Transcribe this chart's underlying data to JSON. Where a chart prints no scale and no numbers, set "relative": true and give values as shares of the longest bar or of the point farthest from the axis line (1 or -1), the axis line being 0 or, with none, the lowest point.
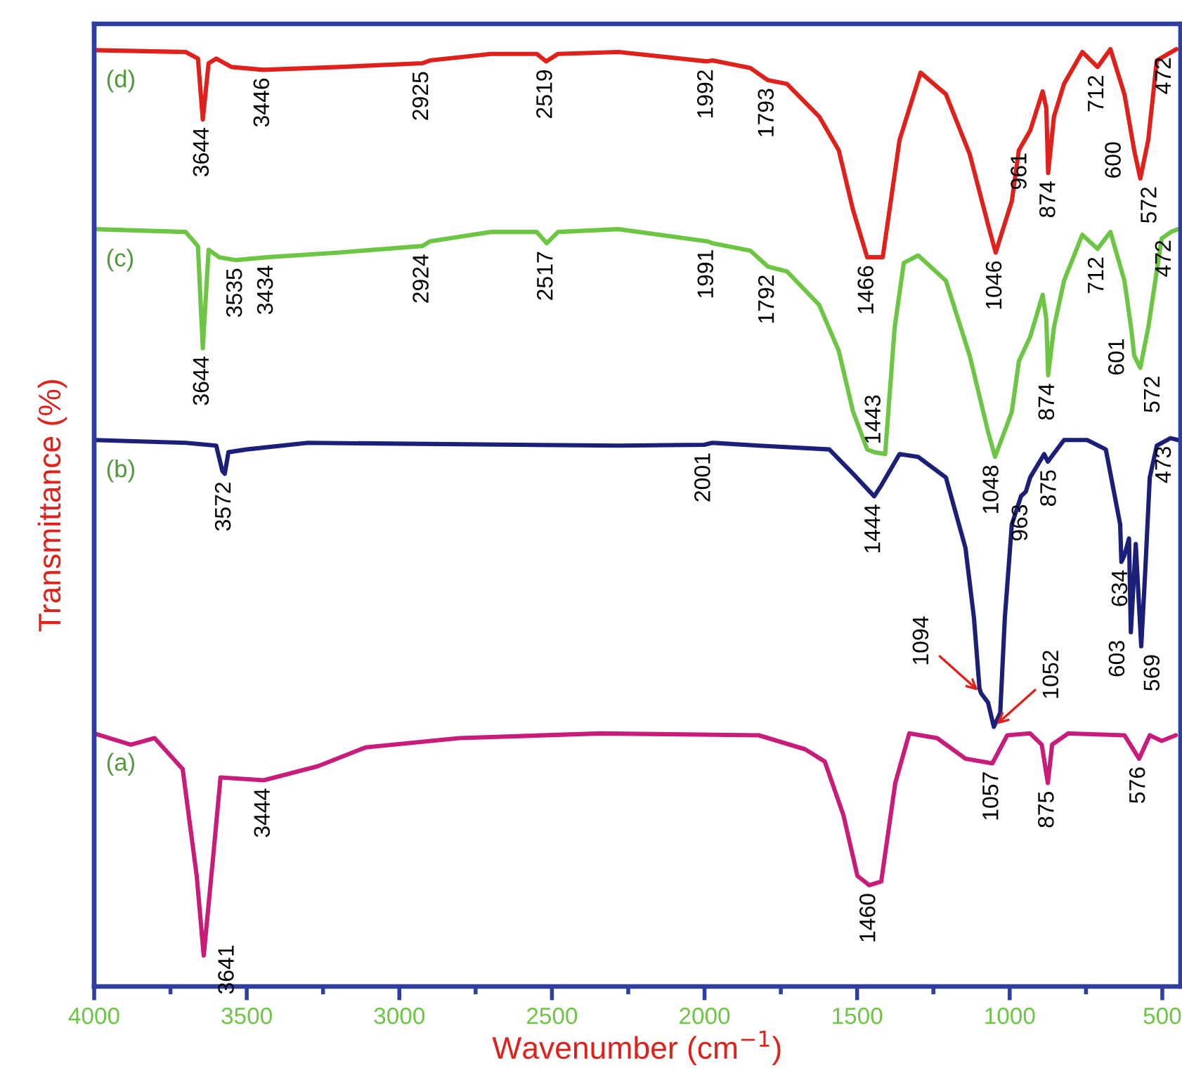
{
  "chart_data": {
    "type": "line",
    "relative": true,
    "xlabel": "Wavenumber (cm$^{−1}$)",
    "ylabel": "Transmittance (%)",
    "xlim": [
      4000,
      440
    ],
    "xticks": [
      4000,
      3500,
      3000,
      2500,
      2000,
      1500,
      1000,
      500
    ],
    "series": [
      {
        "name": "(d)",
        "color": "#e0201b",
        "x": [
          4000,
          3700,
          3660,
          3644,
          3625,
          3600,
          3550,
          3446,
          3200,
          2925,
          2900,
          2700,
          2550,
          2519,
          2480,
          2282,
          1992,
          1974,
          1850,
          1793,
          1730,
          1624,
          1560,
          1513,
          1467,
          1416,
          1361,
          1292,
          1209,
          1131,
          1071,
          1046,
          993,
          970,
          933,
          892,
          880,
          874,
          855,
          822,
          762,
          712,
          670,
          624,
          592,
          572,
          546,
          518,
          454
        ],
        "values": [
          0.999,
          0.997,
          0.99,
          0.925,
          0.985,
          0.99,
          0.981,
          0.978,
          0.981,
          0.985,
          0.988,
          0.995,
          0.995,
          0.987,
          0.995,
          0.997,
          0.987,
          0.988,
          0.98,
          0.967,
          0.963,
          0.928,
          0.892,
          0.828,
          0.778,
          0.778,
          0.903,
          0.975,
          0.952,
          0.888,
          0.813,
          0.783,
          0.838,
          0.892,
          0.913,
          0.955,
          0.937,
          0.868,
          0.928,
          0.963,
          0.997,
          0.981,
          1.0,
          0.952,
          0.892,
          0.862,
          0.903,
          0.988,
          1.0
        ]
      },
      {
        "name": "(c)",
        "color": "#6cc644",
        "x": [
          4000,
          3700,
          3660,
          3644,
          3625,
          3590,
          3535,
          3434,
          3200,
          2924,
          2900,
          2700,
          2550,
          2517,
          2480,
          2282,
          1991,
          1974,
          1850,
          1792,
          1730,
          1624,
          1560,
          1513,
          1467,
          1443,
          1408,
          1377,
          1347,
          1300,
          1209,
          1131,
          1071,
          1048,
          993,
          970,
          933,
          892,
          880,
          874,
          855,
          822,
          762,
          712,
          670,
          624,
          601,
          592,
          572,
          546,
          502,
          472,
          448
        ],
        "values": [
          0.808,
          0.805,
          0.79,
          0.681,
          0.786,
          0.778,
          0.775,
          0.778,
          0.783,
          0.79,
          0.795,
          0.805,
          0.805,
          0.793,
          0.805,
          0.808,
          0.795,
          0.793,
          0.785,
          0.768,
          0.763,
          0.727,
          0.678,
          0.613,
          0.573,
          0.57,
          0.568,
          0.703,
          0.772,
          0.78,
          0.753,
          0.673,
          0.592,
          0.565,
          0.613,
          0.667,
          0.693,
          0.738,
          0.712,
          0.652,
          0.703,
          0.753,
          0.802,
          0.787,
          0.805,
          0.753,
          0.7,
          0.673,
          0.66,
          0.703,
          0.798,
          0.805,
          0.808
        ]
      },
      {
        "name": "(b)",
        "color": "#1b1f7a",
        "x": [
          4000,
          3700,
          3600,
          3580,
          3572,
          3560,
          3500,
          3300,
          2282,
          2001,
          1974,
          1822,
          1591,
          1513,
          1444,
          1420,
          1361,
          1300,
          1209,
          1145,
          1117,
          1099,
          1094,
          1071,
          1052,
          1031,
          1016,
          993,
          963,
          947,
          933,
          887,
          875,
          822,
          746,
          685,
          638,
          634,
          624,
          609,
          603,
          587,
          569,
          556,
          541,
          518,
          473,
          448
        ],
        "values": [
          0.583,
          0.58,
          0.577,
          0.55,
          0.547,
          0.57,
          0.573,
          0.58,
          0.577,
          0.578,
          0.58,
          0.577,
          0.573,
          0.547,
          0.523,
          0.535,
          0.568,
          0.565,
          0.543,
          0.468,
          0.393,
          0.318,
          0.313,
          0.303,
          0.277,
          0.292,
          0.393,
          0.493,
          0.523,
          0.528,
          0.543,
          0.568,
          0.56,
          0.583,
          0.583,
          0.573,
          0.493,
          0.453,
          0.46,
          0.478,
          0.378,
          0.472,
          0.363,
          0.442,
          0.543,
          0.577,
          0.585,
          0.583
        ]
      },
      {
        "name": "(a)",
        "color": "#c81b7a",
        "x": [
          4000,
          3880,
          3802,
          3710,
          3664,
          3641,
          3609,
          3586,
          3444,
          3267,
          3111,
          2803,
          2342,
          1822,
          1670,
          1606,
          1545,
          1499,
          1460,
          1421,
          1375,
          1329,
          1238,
          1145,
          1057,
          1008,
          933,
          895,
          875,
          861,
          808,
          624,
          576,
          541,
          502,
          456
        ],
        "values": [
          0.27,
          0.258,
          0.265,
          0.232,
          0.118,
          0.033,
          0.142,
          0.223,
          0.22,
          0.235,
          0.255,
          0.265,
          0.27,
          0.268,
          0.253,
          0.24,
          0.183,
          0.118,
          0.108,
          0.112,
          0.217,
          0.27,
          0.265,
          0.243,
          0.238,
          0.268,
          0.27,
          0.258,
          0.217,
          0.258,
          0.27,
          0.268,
          0.243,
          0.268,
          0.262,
          0.268
        ]
      }
    ],
    "annotations": [
      {
        "text": "3644",
        "x": 3644,
        "y": 0.925
      },
      {
        "text": "3446",
        "x": 3446,
        "y": 0.978
      },
      {
        "text": "2925",
        "x": 2925,
        "y": 0.985
      },
      {
        "text": "2519",
        "x": 2519,
        "y": 0.987
      },
      {
        "text": "1992",
        "x": 1992,
        "y": 0.987
      },
      {
        "text": "1793",
        "x": 1793,
        "y": 0.967
      },
      {
        "text": "1466",
        "x": 1466,
        "y": 0.778
      },
      {
        "text": "1046",
        "x": 1046,
        "y": 0.783
      },
      {
        "text": "961",
        "x": 961,
        "y": 0.898
      },
      {
        "text": "874",
        "x": 874,
        "y": 0.868
      },
      {
        "text": "712",
        "x": 712,
        "y": 0.981
      },
      {
        "text": "600",
        "x": 600,
        "y": 0.91
      },
      {
        "text": "572",
        "x": 572,
        "y": 0.862
      },
      {
        "text": "472",
        "x": 472,
        "y": 1.0
      },
      {
        "text": "3644",
        "x": 3644,
        "y": 0.681
      },
      {
        "text": "3535",
        "x": 3535,
        "y": 0.775
      },
      {
        "text": "3434",
        "x": 3434,
        "y": 0.778
      },
      {
        "text": "2924",
        "x": 2924,
        "y": 0.79
      },
      {
        "text": "2517",
        "x": 2517,
        "y": 0.793
      },
      {
        "text": "1991",
        "x": 1991,
        "y": 0.795
      },
      {
        "text": "1792",
        "x": 1792,
        "y": 0.768
      },
      {
        "text": "1443",
        "x": 1443,
        "y": 0.57
      },
      {
        "text": "1048",
        "x": 1048,
        "y": 0.565
      },
      {
        "text": "874",
        "x": 874,
        "y": 0.652
      },
      {
        "text": "712",
        "x": 712,
        "y": 0.787
      },
      {
        "text": "601",
        "x": 601,
        "y": 0.7
      },
      {
        "text": "572",
        "x": 572,
        "y": 0.66
      },
      {
        "text": "472",
        "x": 472,
        "y": 0.805
      },
      {
        "text": "3572",
        "x": 3572,
        "y": 0.547
      },
      {
        "text": "2001",
        "x": 2001,
        "y": 0.578
      },
      {
        "text": "1444",
        "x": 1444,
        "y": 0.523
      },
      {
        "text": "1094",
        "x": 1094,
        "y": 0.313
      },
      {
        "text": "1052",
        "x": 1052,
        "y": 0.277
      },
      {
        "text": "963",
        "x": 963,
        "y": 0.523
      },
      {
        "text": "875",
        "x": 875,
        "y": 0.56
      },
      {
        "text": "634",
        "x": 634,
        "y": 0.453
      },
      {
        "text": "603",
        "x": 603,
        "y": 0.378
      },
      {
        "text": "569",
        "x": 569,
        "y": 0.363
      },
      {
        "text": "473",
        "x": 473,
        "y": 0.585
      },
      {
        "text": "3641",
        "x": 3641,
        "y": 0.033
      },
      {
        "text": "3444",
        "x": 3444,
        "y": 0.22
      },
      {
        "text": "1460",
        "x": 1460,
        "y": 0.108
      },
      {
        "text": "1057",
        "x": 1057,
        "y": 0.238
      },
      {
        "text": "875",
        "x": 875,
        "y": 0.217
      },
      {
        "text": "576",
        "x": 576,
        "y": 0.243
      }
    ]
  }
}
